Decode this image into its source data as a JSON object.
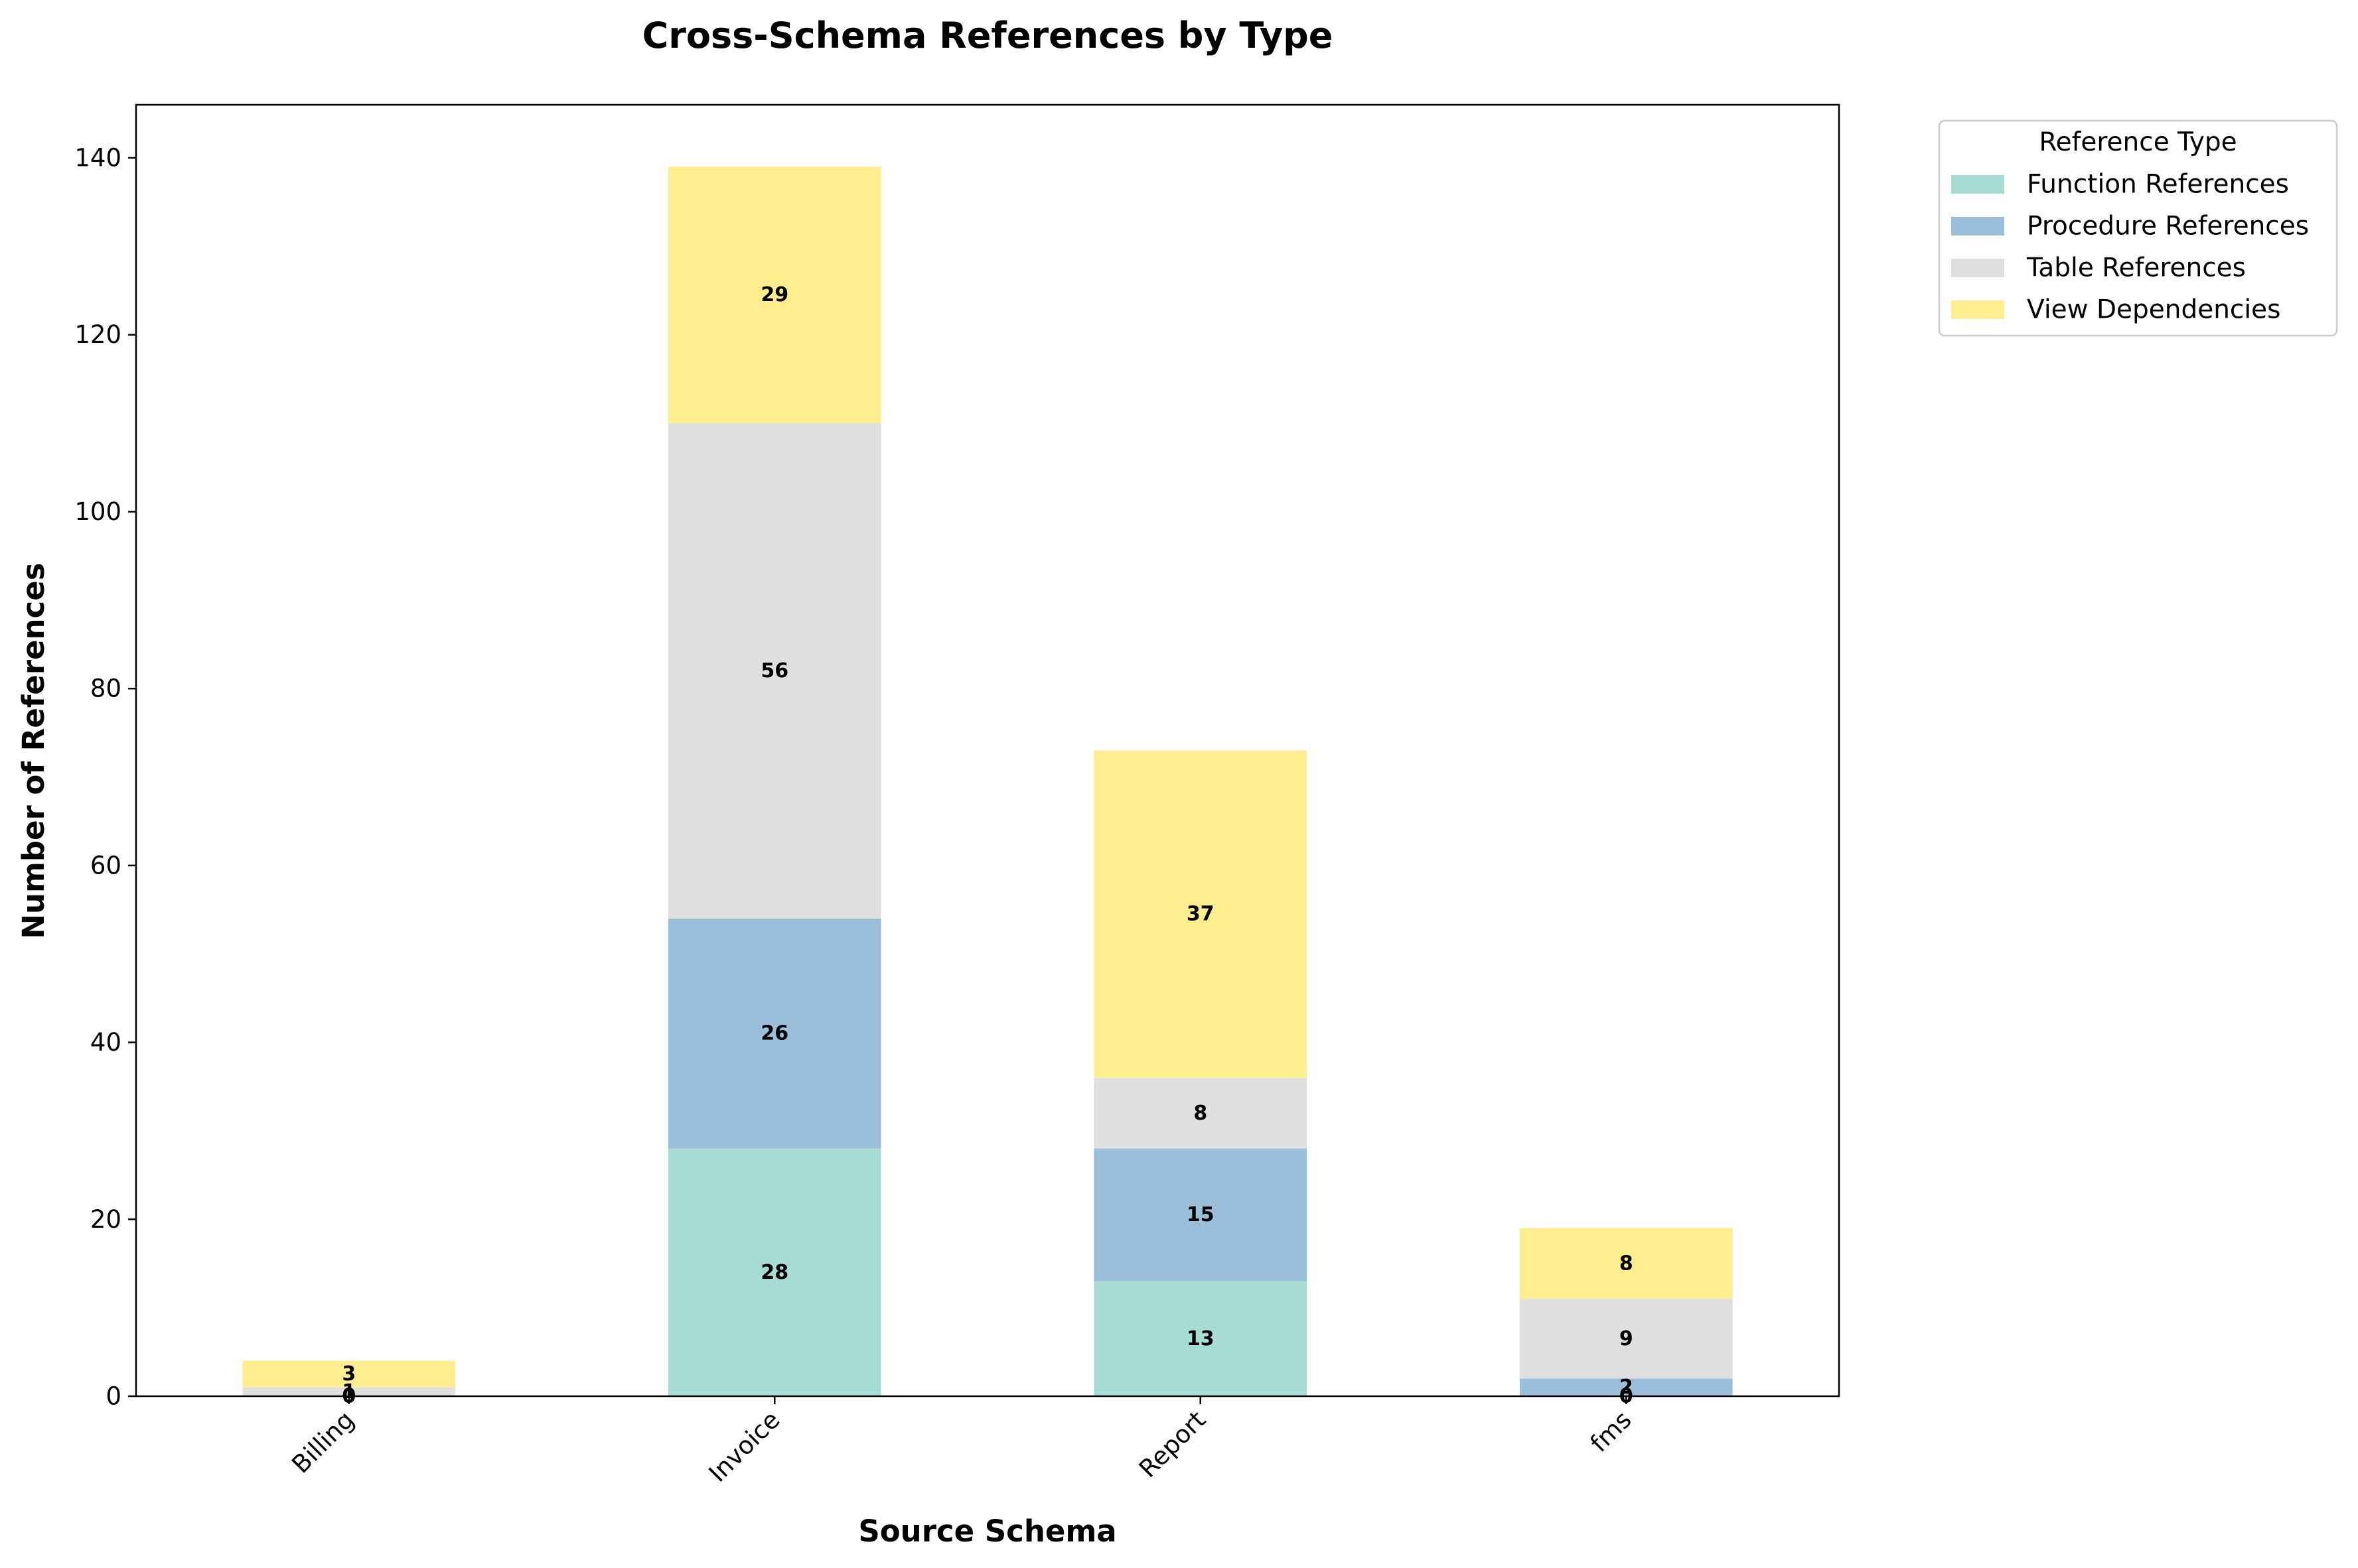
{
  "chart_data": {
    "type": "bar",
    "stacked": true,
    "title": "Cross-Schema References by Type",
    "xlabel": "Source Schema",
    "ylabel": "Number of References",
    "categories": [
      "Billing",
      "Invoice",
      "Report",
      "fms"
    ],
    "ylim": [
      0,
      146
    ],
    "yticks": [
      0,
      20,
      40,
      60,
      80,
      100,
      120,
      140
    ],
    "grid": false,
    "legend": {
      "title": "Reference Type",
      "placement": "outside-top-right"
    },
    "series": [
      {
        "name": "Function References",
        "color": "#a6dcd3",
        "values": [
          0,
          28,
          13,
          0
        ]
      },
      {
        "name": "Procedure References",
        "color": "#9bbfda",
        "values": [
          0,
          26,
          15,
          2
        ]
      },
      {
        "name": "Table References",
        "color": "#e0e0e0",
        "values": [
          1,
          56,
          8,
          9
        ]
      },
      {
        "name": "View Dependencies",
        "color": "#ffee8e",
        "values": [
          3,
          29,
          37,
          8
        ]
      }
    ]
  }
}
